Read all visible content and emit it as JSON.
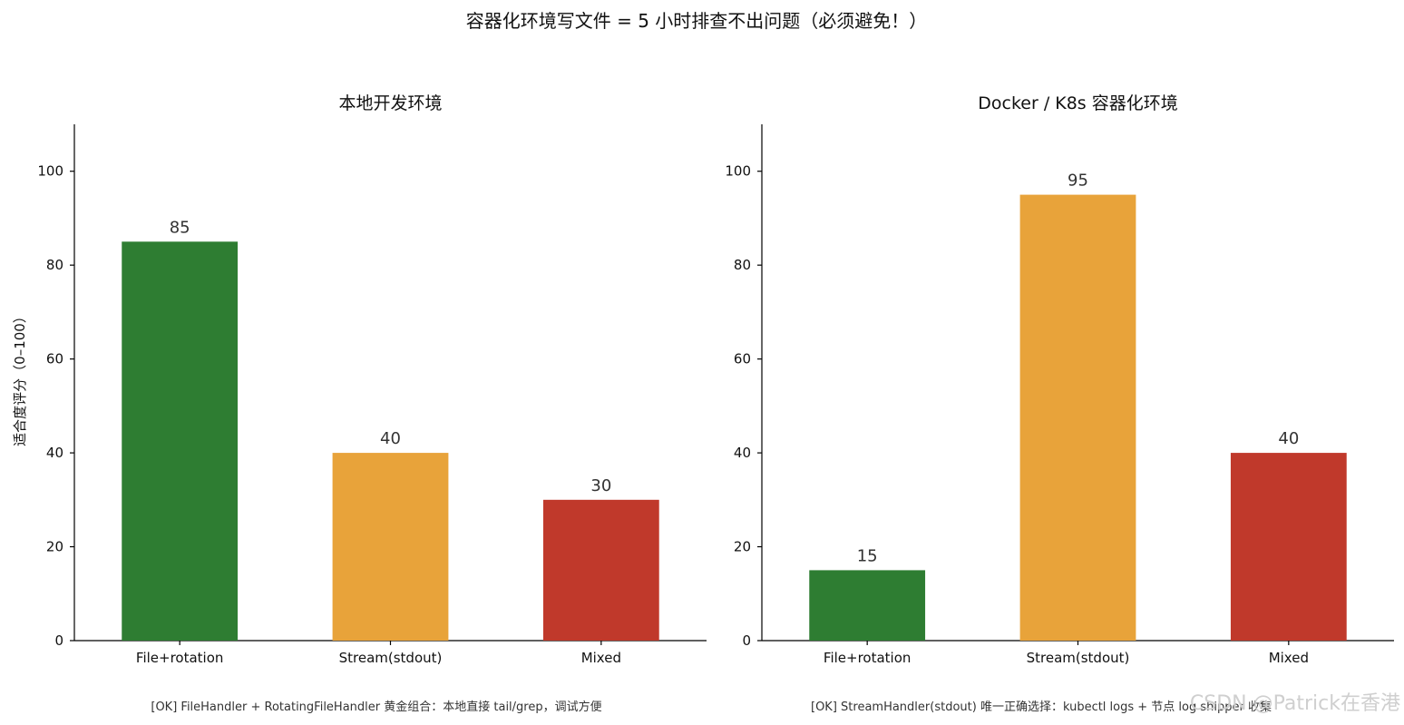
{
  "figure": {
    "title": "容器化环境写文件 = 5 小时排查不出问题（必须避免！）",
    "watermark": "CSDN @Patrick在香港"
  },
  "chart_data": [
    {
      "type": "bar",
      "title": "本地开发环境",
      "categories": [
        "File+rotation",
        "Stream(stdout)",
        "Mixed"
      ],
      "values": [
        85,
        40,
        30
      ],
      "colors": [
        "#2e7d32",
        "#e8a33a",
        "#c0392b"
      ],
      "ylabel": "适合度评分（0–100）",
      "ylim": [
        0,
        110
      ],
      "yticks": [
        0,
        20,
        40,
        60,
        80,
        100
      ],
      "grid": false,
      "note": "[OK] FileHandler + RotatingFileHandler 黄金组合：本地直接 tail/grep，调试方便"
    },
    {
      "type": "bar",
      "title": "Docker / K8s 容器化环境",
      "categories": [
        "File+rotation",
        "Stream(stdout)",
        "Mixed"
      ],
      "values": [
        15,
        95,
        40
      ],
      "colors": [
        "#2e7d32",
        "#e8a33a",
        "#c0392b"
      ],
      "ylabel": "",
      "ylim": [
        0,
        110
      ],
      "yticks": [
        0,
        20,
        40,
        60,
        80,
        100
      ],
      "grid": false,
      "note": "[OK] StreamHandler(stdout) 唯一正确选择：kubectl logs + 节点 log shipper 收集"
    }
  ]
}
